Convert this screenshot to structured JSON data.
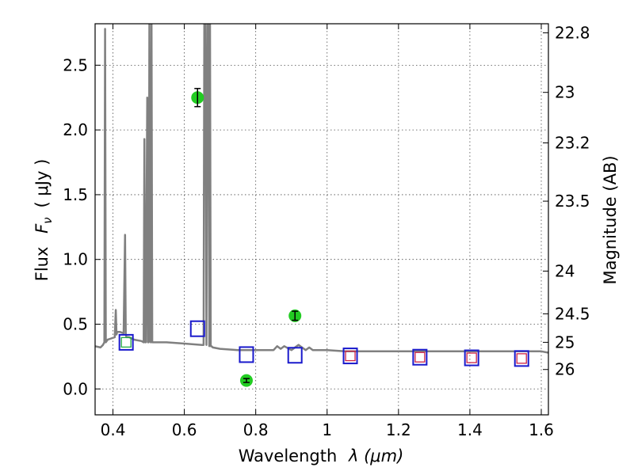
{
  "chart_data": {
    "type": "scatter",
    "xlabel": "Wavelength",
    "xlabel_symbol": "λ (",
    "xlabel_unit": "μm)",
    "ylabel": "Flux",
    "ylabel_symbol": "F",
    "ylabel_symbol_sub": "ν",
    "ylabel_unit": "( μJy )",
    "y2label": "Magnitude (AB)",
    "xlim": [
      0.35,
      1.62
    ],
    "ylim": [
      -0.2,
      2.82
    ],
    "grid": true,
    "x_ticks": [
      0.4,
      0.6,
      0.8,
      1.0,
      1.2,
      1.4,
      1.6
    ],
    "x_tick_labels": [
      "0.4",
      "0.6",
      "0.8",
      "1",
      "1.2",
      "1.4",
      "1.6"
    ],
    "y_ticks": [
      0.0,
      0.5,
      1.0,
      1.5,
      2.0,
      2.5
    ],
    "y_tick_labels": [
      "0.0",
      "0.5",
      "1.0",
      "1.5",
      "2.0",
      "2.5"
    ],
    "y2_ticks": [
      {
        "label": "22.8",
        "flux": 2.75
      },
      {
        "label": "23",
        "flux": 2.29
      },
      {
        "label": "23.2",
        "flux": 1.9
      },
      {
        "label": "23.5",
        "flux": 1.45
      },
      {
        "label": "24",
        "flux": 0.91
      },
      {
        "label": "24.5",
        "flux": 0.58
      },
      {
        "label": "25",
        "flux": 0.36
      },
      {
        "label": "26",
        "flux": 0.15
      }
    ],
    "series": [
      {
        "type": "line",
        "color": "#808080",
        "x": [
          0.35,
          0.365,
          0.372,
          0.376,
          0.378,
          0.38,
          0.385,
          0.395,
          0.405,
          0.408,
          0.41,
          0.412,
          0.42,
          0.43,
          0.434,
          0.436,
          0.438,
          0.445,
          0.46,
          0.48,
          0.486,
          0.488,
          0.49,
          0.492,
          0.496,
          0.498,
          0.5,
          0.502,
          0.504,
          0.506,
          0.508,
          0.51,
          0.55,
          0.6,
          0.65,
          0.654,
          0.656,
          0.659,
          0.662,
          0.665,
          0.668,
          0.67,
          0.672,
          0.674,
          0.676,
          0.68,
          0.7,
          0.75,
          0.8,
          0.85,
          0.86,
          0.87,
          0.88,
          0.9,
          0.92,
          0.94,
          0.95,
          0.96,
          0.98,
          1.0,
          1.05,
          1.1,
          1.2,
          1.3,
          1.4,
          1.5,
          1.56,
          1.6,
          1.62
        ],
        "y": [
          0.33,
          0.32,
          0.34,
          0.36,
          2.78,
          0.36,
          0.38,
          0.39,
          0.4,
          0.61,
          0.42,
          0.44,
          0.44,
          0.43,
          1.19,
          0.42,
          0.4,
          0.4,
          0.38,
          0.37,
          0.36,
          1.93,
          0.36,
          0.36,
          2.25,
          0.36,
          0.36,
          2.82,
          0.37,
          0.36,
          2.82,
          0.36,
          0.36,
          0.35,
          0.34,
          0.34,
          2.82,
          2.82,
          0.34,
          2.82,
          2.82,
          0.33,
          2.82,
          0.33,
          0.33,
          0.32,
          0.31,
          0.3,
          0.3,
          0.3,
          0.33,
          0.31,
          0.33,
          0.3,
          0.34,
          0.3,
          0.32,
          0.3,
          0.3,
          0.3,
          0.29,
          0.29,
          0.29,
          0.29,
          0.29,
          0.29,
          0.29,
          0.29,
          0.28
        ]
      },
      {
        "type": "scatter",
        "marker": "circle",
        "color": "#22cc22",
        "points": [
          {
            "x": 0.637,
            "y": 2.25,
            "yerr": 0.07
          },
          {
            "x": 0.774,
            "y": 0.065,
            "yerr": 0.015
          },
          {
            "x": 0.91,
            "y": 0.565,
            "yerr": 0.035
          }
        ]
      },
      {
        "type": "scatter",
        "marker": "square-open",
        "color": "#1a1acc",
        "points": [
          {
            "x": 0.437,
            "y": 0.36
          },
          {
            "x": 0.637,
            "y": 0.465
          },
          {
            "x": 0.774,
            "y": 0.265
          },
          {
            "x": 0.91,
            "y": 0.26
          },
          {
            "x": 1.065,
            "y": 0.255
          },
          {
            "x": 1.26,
            "y": 0.245
          },
          {
            "x": 1.405,
            "y": 0.24
          },
          {
            "x": 1.545,
            "y": 0.235
          }
        ]
      },
      {
        "type": "scatter",
        "marker": "square-open-small",
        "color": "#cc2244",
        "points": [
          {
            "x": 1.065,
            "y": 0.255
          },
          {
            "x": 1.26,
            "y": 0.245
          },
          {
            "x": 1.405,
            "y": 0.24
          },
          {
            "x": 1.545,
            "y": 0.235
          }
        ]
      },
      {
        "type": "scatter",
        "marker": "square-open-small",
        "color": "#22aa44",
        "points": [
          {
            "x": 0.437,
            "y": 0.36
          }
        ]
      }
    ]
  }
}
